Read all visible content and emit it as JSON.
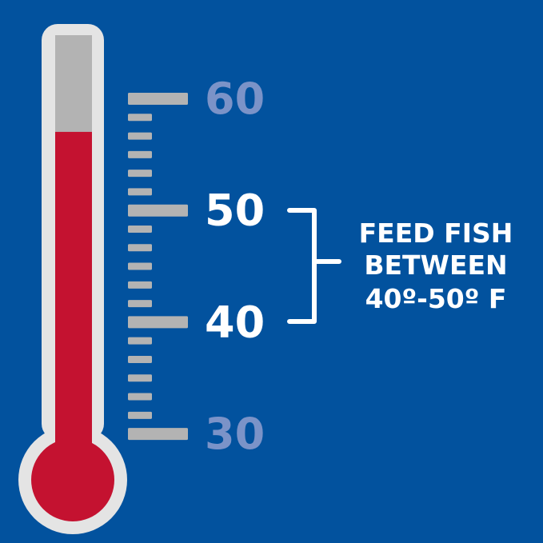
{
  "colors": {
    "background": "#02529e",
    "thermometer_casing": "#e4e4e4",
    "tube_empty": "#b3b3b3",
    "mercury": "#c41230",
    "tick": "#b3b3b3",
    "scale_label_muted": "#7b93c8",
    "scale_label_highlight": "#ffffff",
    "callout_text": "#ffffff"
  },
  "thermometer": {
    "mercury_level_degrees": 57,
    "scale_min": 30,
    "scale_max": 60
  },
  "scale_labels": [
    {
      "text": "60",
      "value": 60,
      "highlight": false
    },
    {
      "text": "50",
      "value": 50,
      "highlight": true
    },
    {
      "text": "40",
      "value": 40,
      "highlight": true
    },
    {
      "text": "30",
      "value": 30,
      "highlight": false
    }
  ],
  "callout": {
    "lines": [
      "FEED FISH",
      "BETWEEN",
      "40º-50º F"
    ]
  }
}
